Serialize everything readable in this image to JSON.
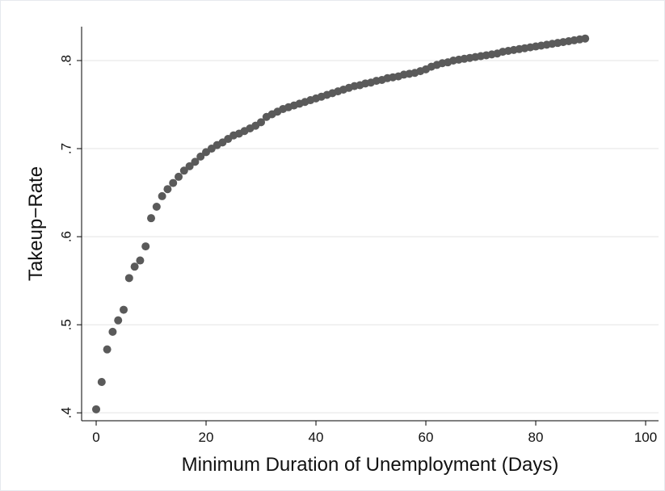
{
  "chart_data": {
    "type": "scatter",
    "x_label": "Minimum Duration of Unemployment (Days)",
    "y_label": "Takeup−Rate",
    "x": [
      0,
      1,
      2,
      3,
      4,
      5,
      6,
      7,
      8,
      9,
      10,
      11,
      12,
      13,
      14,
      15,
      16,
      17,
      18,
      19,
      20,
      21,
      22,
      23,
      24,
      25,
      26,
      27,
      28,
      29,
      30,
      31,
      32,
      33,
      34,
      35,
      36,
      37,
      38,
      39,
      40,
      41,
      42,
      43,
      44,
      45,
      46,
      47,
      48,
      49,
      50,
      51,
      52,
      53,
      54,
      55,
      56,
      57,
      58,
      59,
      60,
      61,
      62,
      63,
      64,
      65,
      66,
      67,
      68,
      69,
      70,
      71,
      72,
      73,
      74,
      75,
      76,
      77,
      78,
      79,
      80,
      81,
      82,
      83,
      84,
      85,
      86,
      87,
      88,
      89
    ],
    "values": [
      0.404,
      0.435,
      0.472,
      0.492,
      0.505,
      0.517,
      0.553,
      0.566,
      0.573,
      0.589,
      0.621,
      0.634,
      0.646,
      0.654,
      0.661,
      0.668,
      0.675,
      0.68,
      0.685,
      0.691,
      0.696,
      0.7,
      0.704,
      0.707,
      0.711,
      0.715,
      0.717,
      0.72,
      0.723,
      0.726,
      0.73,
      0.736,
      0.739,
      0.742,
      0.745,
      0.747,
      0.749,
      0.751,
      0.753,
      0.755,
      0.757,
      0.759,
      0.761,
      0.763,
      0.765,
      0.767,
      0.769,
      0.771,
      0.772,
      0.774,
      0.775,
      0.777,
      0.778,
      0.78,
      0.781,
      0.782,
      0.784,
      0.785,
      0.786,
      0.788,
      0.79,
      0.793,
      0.795,
      0.797,
      0.798,
      0.8,
      0.801,
      0.802,
      0.803,
      0.804,
      0.805,
      0.806,
      0.807,
      0.808,
      0.81,
      0.811,
      0.812,
      0.813,
      0.814,
      0.815,
      0.816,
      0.817,
      0.818,
      0.819,
      0.82,
      0.821,
      0.822,
      0.823,
      0.824,
      0.825
    ],
    "color": "#5a5a5a",
    "xlim": [
      -2.65,
      102.35
    ],
    "ylim": [
      0.391,
      0.8385
    ],
    "xticks": [
      0,
      20,
      40,
      60,
      80,
      100
    ],
    "yticks": [
      {
        "value": 0.4,
        "label": ".4"
      },
      {
        "value": 0.5,
        "label": ".5"
      },
      {
        "value": 0.6,
        "label": ".6"
      },
      {
        "value": 0.7,
        "label": ".7"
      },
      {
        "value": 0.8,
        "label": ".8"
      }
    ],
    "grid": true
  }
}
